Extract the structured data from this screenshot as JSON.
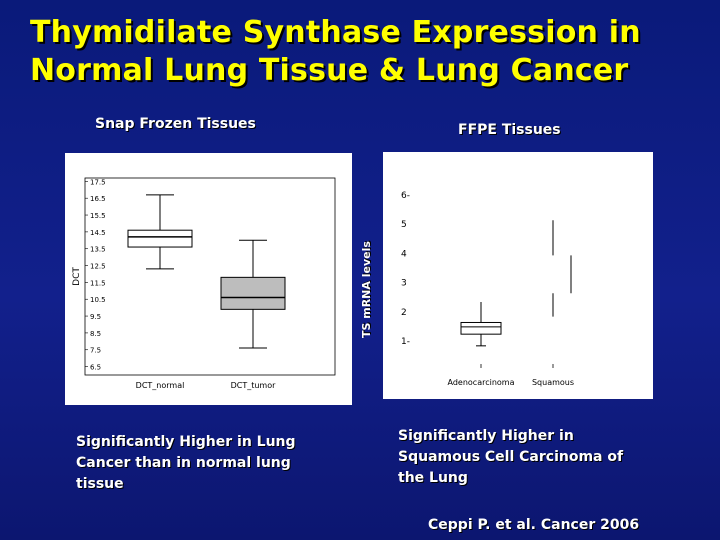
{
  "slide": {
    "title_line1": "Thymidilate Synthase Expression in",
    "title_line2": "Normal Lung Tissue & Lung Cancer",
    "left_heading": "Snap Frozen Tissues",
    "right_heading": "FFPE Tissues",
    "left_caption": "Significantly Higher in Lung Cancer than in normal lung tissue",
    "right_caption": "Significantly Higher in Squamous Cell Carcinoma of the Lung",
    "citation": "Ceppi P. et al. Cancer 2006",
    "colors": {
      "background": "#0c1878",
      "title": "#ffff00",
      "text": "#ffffff"
    }
  },
  "chart_data": [
    {
      "type": "box",
      "ylabel": "DCT",
      "ylim": [
        6.0,
        17.7
      ],
      "yticks": [
        "17.5",
        "16.5",
        "15.5",
        "14.5",
        "13.5",
        "12.5",
        "11.5",
        "10.5",
        "9.5",
        "8.5",
        "7.5",
        "6.5"
      ],
      "categories": [
        "DCT_normal",
        "DCT_tumor"
      ],
      "boxes": [
        {
          "name": "DCT_normal",
          "min": 12.3,
          "q1": 13.6,
          "median": 14.2,
          "q3": 14.6,
          "max": 16.7,
          "fill": "#ffffff"
        },
        {
          "name": "DCT_tumor",
          "min": 7.6,
          "q1": 9.9,
          "median": 10.6,
          "q3": 11.8,
          "max": 14.0,
          "fill": "#bdbdbd"
        }
      ]
    },
    {
      "type": "box",
      "ylabel": "TS mRNA levels",
      "ylim": [
        0.5,
        6.4
      ],
      "yticks": [
        "6-",
        "5",
        "4",
        "3",
        "2",
        "1-"
      ],
      "categories": [
        "Adenocarcinoma",
        "Squamous"
      ],
      "boxes": [
        {
          "name": "Adenocarcinoma",
          "min": 0.8,
          "q1": 1.2,
          "median": 1.45,
          "q3": 1.6,
          "max": 2.3,
          "fill": "#ffffff"
        },
        {
          "name": "Squamous",
          "min": 1.8,
          "q1": 2.6,
          "median": 2.6,
          "q3": 3.9,
          "max": 5.1,
          "fill": "#ffffff"
        }
      ]
    }
  ]
}
